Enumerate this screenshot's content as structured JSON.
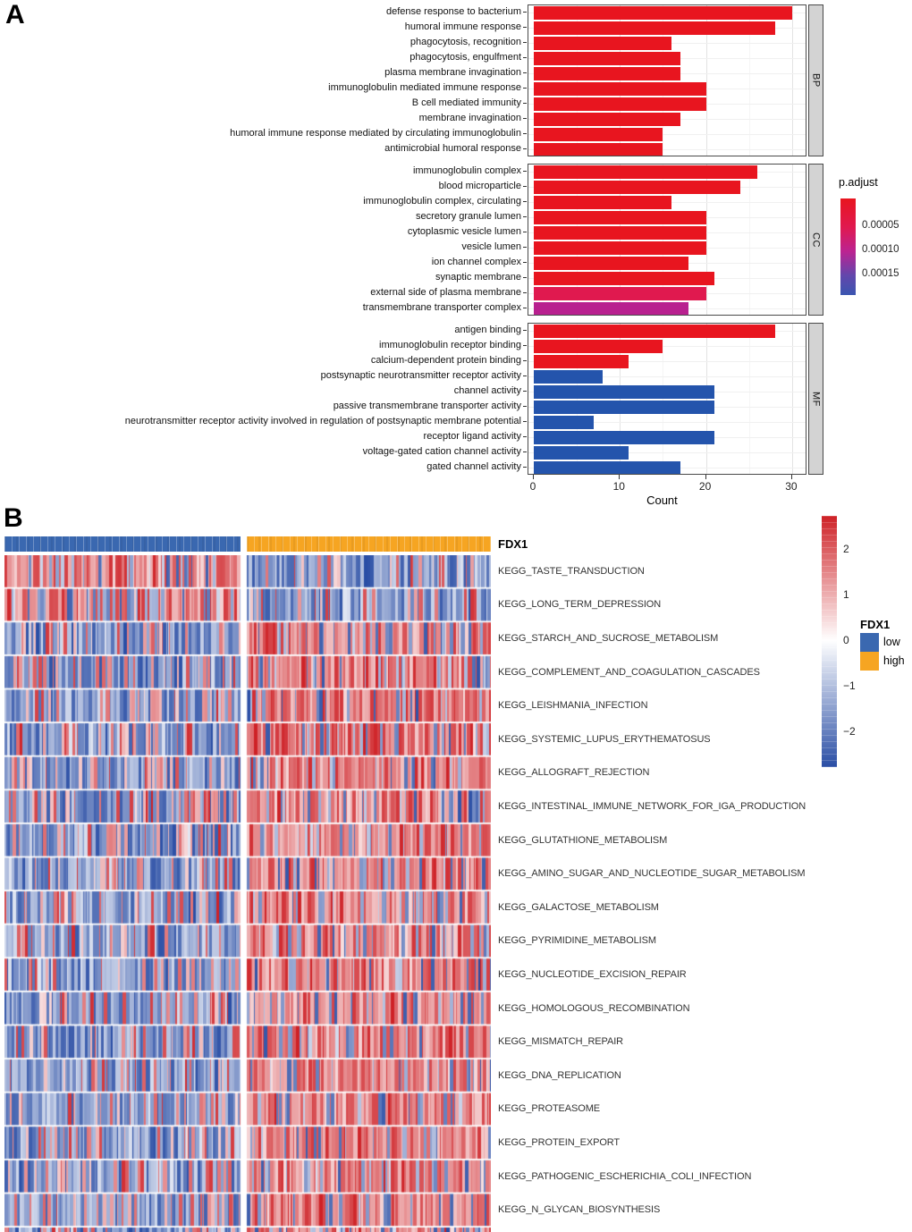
{
  "chart_data": [
    {
      "id": "go_enrichment",
      "panel_label": "A",
      "type": "bar",
      "orientation": "horizontal",
      "xlabel": "Count",
      "x_ticks": [
        0,
        10,
        20,
        30
      ],
      "xlim": [
        0,
        32
      ],
      "grid": true,
      "legend": {
        "title": "p.adjust",
        "position": "right",
        "tick_labels": [
          "0.00005",
          "0.00010",
          "0.00015"
        ],
        "gradient_stops": [
          "#E8151F",
          "#E01950",
          "#BB2392",
          "#6247AC",
          "#3A55B0"
        ]
      },
      "bar_colors": {
        "low_padjust_red": "#E8151F",
        "mid_pink": "#E0194F",
        "mid_magenta": "#B8208F",
        "high_padjust_blue": "#2454AC"
      },
      "facets": [
        {
          "name": "BP",
          "categories": [
            "defense response to bacterium",
            "humoral immune response",
            "phagocytosis, recognition",
            "phagocytosis, engulfment",
            "plasma membrane invagination",
            "immunoglobulin mediated immune response",
            "B cell mediated immunity",
            "membrane invagination",
            "humoral immune response mediated by circulating immunoglobulin",
            "antimicrobial humoral response"
          ],
          "values": [
            30,
            28,
            16,
            17,
            17,
            20,
            20,
            17,
            15,
            15
          ],
          "colors": [
            "#E8151F",
            "#E8151F",
            "#E8151F",
            "#E8151F",
            "#E8151F",
            "#E8151F",
            "#E8151F",
            "#E8151F",
            "#E8151F",
            "#E8151F"
          ]
        },
        {
          "name": "CC",
          "categories": [
            "immunoglobulin complex",
            "blood microparticle",
            "immunoglobulin complex, circulating",
            "secretory granule lumen",
            "cytoplasmic vesicle lumen",
            "vesicle lumen",
            "ion channel complex",
            "synaptic membrane",
            "external side of plasma membrane",
            "transmembrane transporter complex"
          ],
          "values": [
            26,
            24,
            16,
            20,
            20,
            20,
            18,
            21,
            20,
            18
          ],
          "colors": [
            "#E8151F",
            "#E8151F",
            "#E8151F",
            "#E8151F",
            "#E8151F",
            "#E8151F",
            "#E8151F",
            "#E8151F",
            "#E0194F",
            "#B8208F"
          ]
        },
        {
          "name": "MF",
          "categories": [
            "antigen binding",
            "immunoglobulin receptor binding",
            "calcium-dependent protein binding",
            "postsynaptic neurotransmitter receptor activity",
            "channel activity",
            "passive transmembrane transporter activity",
            "neurotransmitter receptor activity involved in regulation of postsynaptic membrane potential",
            "receptor ligand activity",
            "voltage-gated cation channel activity",
            "gated channel activity"
          ],
          "values": [
            28,
            15,
            11,
            8,
            21,
            21,
            7,
            21,
            11,
            17
          ],
          "colors": [
            "#E8151F",
            "#E8151F",
            "#E8151F",
            "#2454AC",
            "#2454AC",
            "#2454AC",
            "#2454AC",
            "#2454AC",
            "#2454AC",
            "#2454AC"
          ]
        }
      ]
    },
    {
      "id": "gsea_kegg_heatmap",
      "panel_label": "B",
      "type": "heatmap",
      "annotation": {
        "label": "FDX1",
        "groups": [
          {
            "label": "low",
            "color": "#3A68B0"
          },
          {
            "label": "high",
            "color": "#F6A522"
          }
        ]
      },
      "legend": {
        "title": "FDX1",
        "items": [
          {
            "label": "low",
            "color": "#3A68B0"
          },
          {
            "label": "high",
            "color": "#F6A522"
          }
        ]
      },
      "colorbar": {
        "tick_labels": [
          "2",
          "1",
          "0",
          "−1",
          "−2"
        ],
        "tick_values": [
          2,
          1,
          0,
          -1,
          -2
        ],
        "max_color": "#CE2126",
        "mid_color": "#FFFFFF",
        "min_color": "#2A4EA5"
      },
      "rows": [
        {
          "label": "KEGG_TASTE_TRANSDUCTION",
          "low_mean": 0.8,
          "high_mean": -0.75
        },
        {
          "label": "KEGG_LONG_TERM_DEPRESSION",
          "low_mean": 0.5,
          "high_mean": -0.85
        },
        {
          "label": "KEGG_STARCH_AND_SUCROSE_METABOLISM",
          "low_mean": -0.5,
          "high_mean": 0.55
        },
        {
          "label": "KEGG_COMPLEMENT_AND_COAGULATION_CASCADES",
          "low_mean": -0.55,
          "high_mean": 0.65
        },
        {
          "label": "KEGG_LEISHMANIA_INFECTION",
          "low_mean": -0.6,
          "high_mean": 0.7
        },
        {
          "label": "KEGG_SYSTEMIC_LUPUS_ERYTHEMATOSUS",
          "low_mean": -0.6,
          "high_mean": 0.7
        },
        {
          "label": "KEGG_ALLOGRAFT_REJECTION",
          "low_mean": -0.55,
          "high_mean": 0.65
        },
        {
          "label": "KEGG_INTESTINAL_IMMUNE_NETWORK_FOR_IGA_PRODUCTION",
          "low_mean": -0.45,
          "high_mean": 0.55
        },
        {
          "label": "KEGG_GLUTATHIONE_METABOLISM",
          "low_mean": -0.6,
          "high_mean": 0.65
        },
        {
          "label": "KEGG_AMINO_SUGAR_AND_NUCLEOTIDE_SUGAR_METABOLISM",
          "low_mean": -0.65,
          "high_mean": 0.7
        },
        {
          "label": "KEGG_GALACTOSE_METABOLISM",
          "low_mean": -0.6,
          "high_mean": 0.7
        },
        {
          "label": "KEGG_PYRIMIDINE_METABOLISM",
          "low_mean": -0.7,
          "high_mean": 0.7
        },
        {
          "label": "KEGG_NUCLEOTIDE_EXCISION_REPAIR",
          "low_mean": -0.7,
          "high_mean": 0.75
        },
        {
          "label": "KEGG_HOMOLOGOUS_RECOMBINATION",
          "low_mean": -0.7,
          "high_mean": 0.7
        },
        {
          "label": "KEGG_MISMATCH_REPAIR",
          "low_mean": -0.75,
          "high_mean": 0.75
        },
        {
          "label": "KEGG_DNA_REPLICATION",
          "low_mean": -0.75,
          "high_mean": 0.8
        },
        {
          "label": "KEGG_PROTEASOME",
          "low_mean": -0.75,
          "high_mean": 0.8
        },
        {
          "label": "KEGG_PROTEIN_EXPORT",
          "low_mean": -0.7,
          "high_mean": 0.75
        },
        {
          "label": "KEGG_PATHOGENIC_ESCHERICHIA_COLI_INFECTION",
          "low_mean": -0.55,
          "high_mean": 0.65
        },
        {
          "label": "KEGG_N_GLYCAN_BIOSYNTHESIS",
          "low_mean": -0.6,
          "high_mean": 0.75
        }
      ]
    }
  ]
}
